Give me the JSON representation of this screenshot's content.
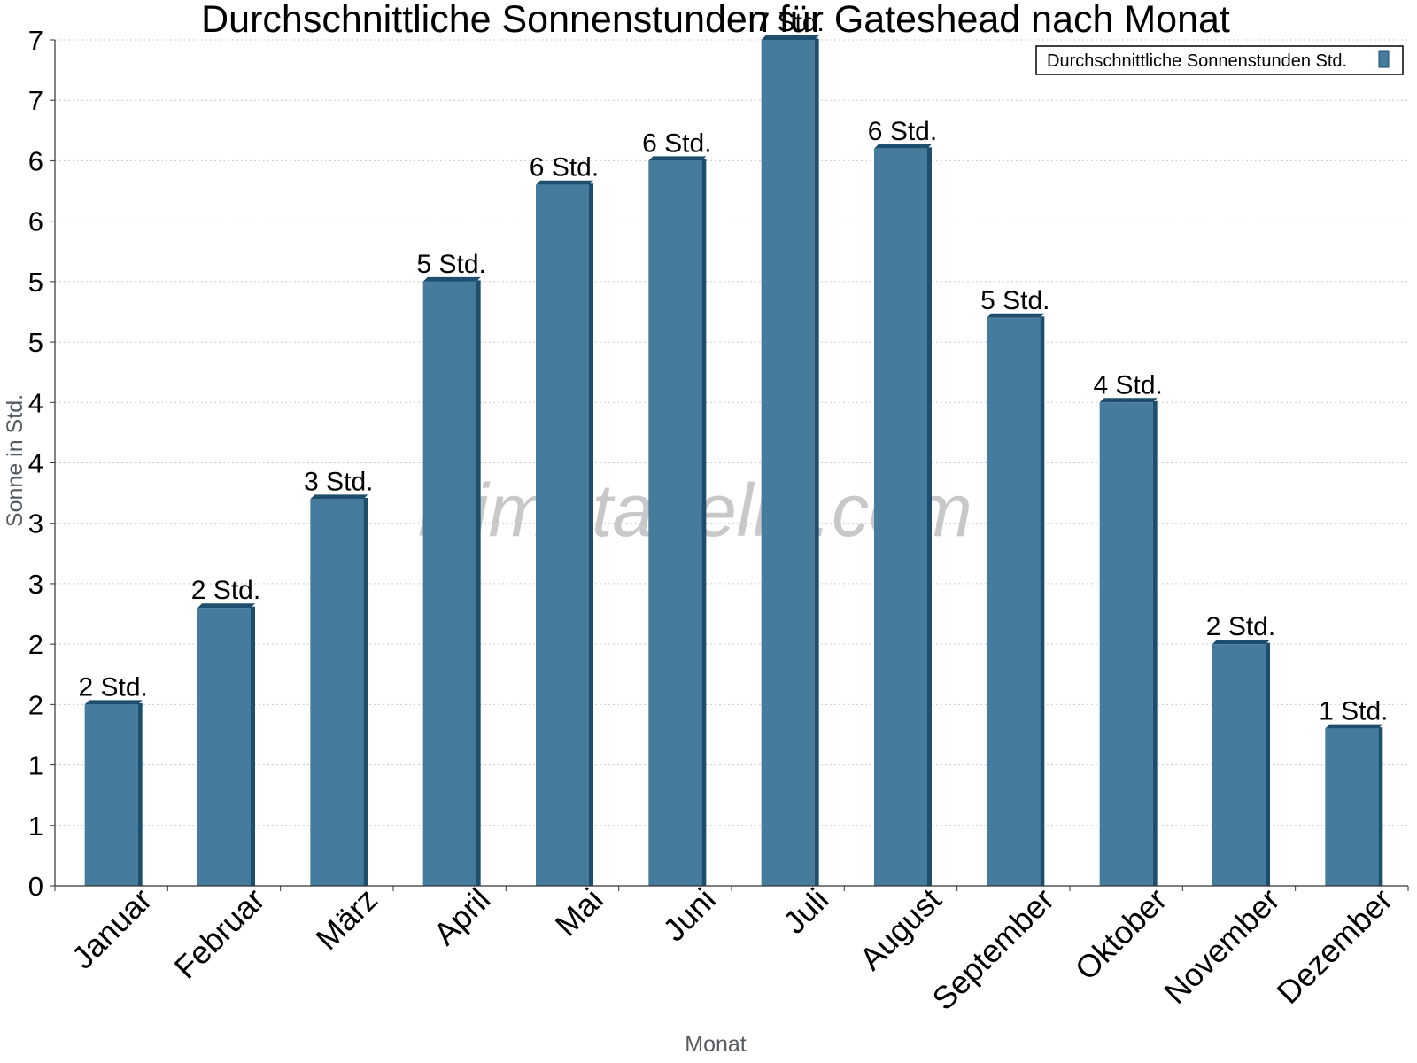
{
  "chart_data": {
    "type": "bar",
    "title": "Durchschnittliche Sonnenstunden für Gateshead nach Monat",
    "xlabel": "Monat",
    "ylabel": "Sonne in Std.",
    "categories": [
      "Januar",
      "Februar",
      "März",
      "April",
      "Mai",
      "Juni",
      "Juli",
      "August",
      "September",
      "Oktober",
      "November",
      "Dezember"
    ],
    "series": [
      {
        "name": "Durchschnittliche Sonnenstunden Std.",
        "values": [
          1.5,
          2.3,
          3.2,
          5.0,
          5.8,
          6.0,
          7.0,
          6.1,
          4.7,
          4.0,
          2.0,
          1.3
        ],
        "data_labels": [
          "2 Std.",
          "2 Std.",
          "3 Std.",
          "5 Std.",
          "6 Std.",
          "6 Std.",
          "7 Std.",
          "6 Std.",
          "5 Std.",
          "4 Std.",
          "2 Std.",
          "1 Std."
        ]
      }
    ],
    "yticks": [
      0,
      0.5,
      1,
      1.5,
      2,
      2.5,
      3,
      3.5,
      4,
      4.5,
      5,
      5.5,
      6,
      6.5,
      7
    ],
    "ytick_labels": [
      "0",
      "1",
      "1",
      "2",
      "2",
      "3",
      "3",
      "4",
      "4",
      "5",
      "5",
      "6",
      "6",
      "7",
      "7"
    ],
    "ylim": [
      0,
      7
    ],
    "grid": true,
    "legend_position": "top-right",
    "watermark": "klimatabelle.com",
    "colors": {
      "bar": "#457b9d",
      "bar_side": "#1d4e6e",
      "bar_top": "#1d4e6e",
      "grid": "#cccccc",
      "axis": "#333333"
    }
  }
}
